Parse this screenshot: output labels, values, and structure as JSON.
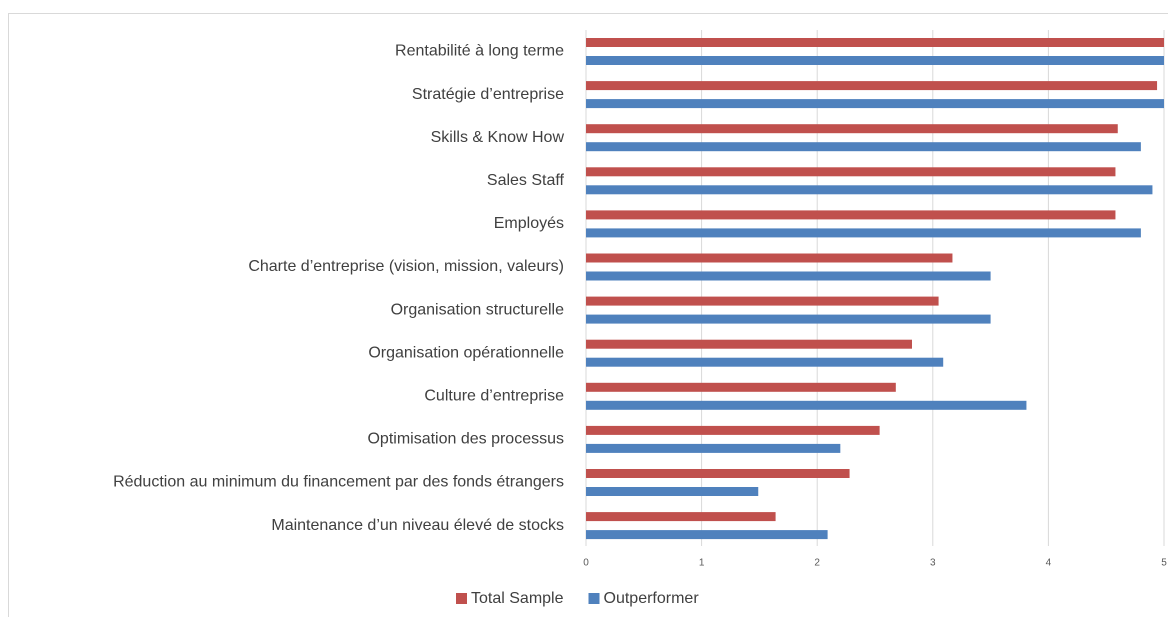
{
  "chart_data": {
    "type": "bar",
    "orientation": "horizontal",
    "categories": [
      "Rentabilité à long terme",
      "Stratégie d’entreprise",
      "Skills & Know How",
      "Sales Staff",
      "Employés",
      "Charte d’entreprise (vision, mission, valeurs)",
      "Organisation structurelle",
      "Organisation opérationnelle",
      "Culture d’entreprise",
      "Optimisation des processus",
      "Réduction au minimum du financement par des fonds étrangers",
      "Maintenance d’un niveau élevé de stocks"
    ],
    "series": [
      {
        "name": "Total Sample",
        "color": "#c0504d",
        "values": [
          5.0,
          4.94,
          4.6,
          4.58,
          4.58,
          3.17,
          3.05,
          2.82,
          2.68,
          2.54,
          2.28,
          1.64
        ]
      },
      {
        "name": "Outperformer",
        "color": "#4f81bd",
        "values": [
          5.0,
          5.0,
          4.8,
          4.9,
          4.8,
          3.5,
          3.5,
          3.09,
          3.81,
          2.2,
          1.49,
          2.09
        ]
      }
    ],
    "xlim": [
      0,
      5
    ],
    "xticks": [
      0,
      1,
      2,
      3,
      4,
      5
    ],
    "grid": true,
    "legend": "bottom"
  }
}
